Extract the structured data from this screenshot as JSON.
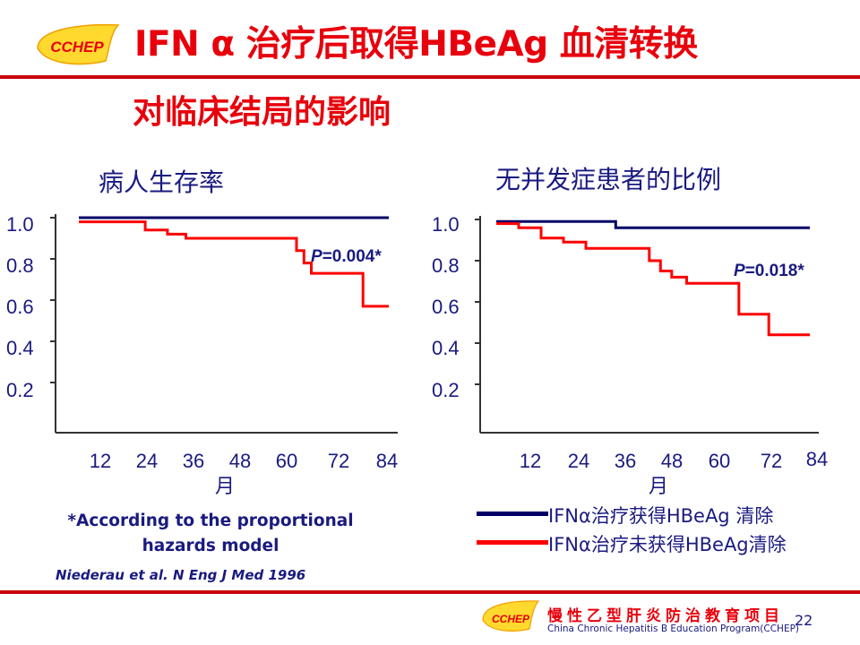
{
  "header": {
    "logo_text": "CCHEP",
    "title_line1": "IFN α 治疗后取得HBeAg 血清转换",
    "title_line2": "对临床结局的影响"
  },
  "chart_data": [
    {
      "type": "line",
      "title": "病人生存率",
      "xlabel": "月",
      "x_ticks": [
        "12",
        "24",
        "36",
        "48",
        "60",
        "72",
        "84"
      ],
      "y_ticks": [
        "1.0",
        "0.8",
        "0.6",
        "0.4",
        "0.2"
      ],
      "xlim": [
        0,
        84
      ],
      "ylim": [
        0,
        1.0
      ],
      "annotation": {
        "p_letter": "P",
        "p_value": "=0.004*"
      },
      "series": [
        {
          "name": "IFNα治疗获得HBeAg 清除",
          "color": "#000066",
          "points": [
            [
              0,
              1.0
            ],
            [
              84,
              1.0
            ]
          ]
        },
        {
          "name": "IFNα治疗未获得HBeAg清除",
          "color": "#ff0000",
          "points": [
            [
              0,
              0.98
            ],
            [
              18,
              0.98
            ],
            [
              18,
              0.94
            ],
            [
              24,
              0.94
            ],
            [
              24,
              0.92
            ],
            [
              29,
              0.92
            ],
            [
              29,
              0.9
            ],
            [
              59,
              0.9
            ],
            [
              59,
              0.84
            ],
            [
              61,
              0.84
            ],
            [
              61,
              0.78
            ],
            [
              63,
              0.78
            ],
            [
              63,
              0.73
            ],
            [
              77,
              0.73
            ],
            [
              77,
              0.57
            ],
            [
              84,
              0.57
            ]
          ]
        }
      ]
    },
    {
      "type": "line",
      "title": "无并发症患者的比例",
      "xlabel": "月",
      "x_ticks": [
        "12",
        "24",
        "36",
        "48",
        "60",
        "72",
        "84"
      ],
      "y_ticks": [
        "1.0",
        "0.8",
        "0.6",
        "0.4",
        "0.2"
      ],
      "xlim": [
        0,
        84
      ],
      "ylim": [
        0,
        1.0
      ],
      "annotation": {
        "p_letter": "P",
        "p_value": "=0.018*"
      },
      "series": [
        {
          "name": "IFNα治疗获得HBeAg 清除",
          "color": "#000066",
          "points": [
            [
              0,
              0.99
            ],
            [
              32,
              0.99
            ],
            [
              32,
              0.96
            ],
            [
              84,
              0.96
            ]
          ]
        },
        {
          "name": "IFNα治疗未获得HBeAg清除",
          "color": "#ff0000",
          "points": [
            [
              0,
              0.98
            ],
            [
              6,
              0.98
            ],
            [
              6,
              0.96
            ],
            [
              12,
              0.96
            ],
            [
              12,
              0.91
            ],
            [
              18,
              0.91
            ],
            [
              18,
              0.89
            ],
            [
              24,
              0.89
            ],
            [
              24,
              0.86
            ],
            [
              41,
              0.86
            ],
            [
              41,
              0.8
            ],
            [
              44,
              0.8
            ],
            [
              44,
              0.75
            ],
            [
              47,
              0.75
            ],
            [
              47,
              0.72
            ],
            [
              51,
              0.72
            ],
            [
              51,
              0.69
            ],
            [
              65,
              0.69
            ],
            [
              65,
              0.54
            ],
            [
              73,
              0.54
            ],
            [
              73,
              0.44
            ],
            [
              84,
              0.44
            ]
          ]
        }
      ]
    }
  ],
  "footnote": {
    "line1": "*According to the proportional",
    "line2": "hazards model"
  },
  "citation": "Niederau et al. N Eng J Med 1996",
  "legend": [
    {
      "label": "IFNα治疗获得HBeAg 清除",
      "color": "#000066"
    },
    {
      "label": "IFNα治疗未获得HBeAg清除",
      "color": "#ff0000"
    }
  ],
  "footer": {
    "logo_text": "CCHEP",
    "org_cn": "慢性乙型肝炎防治教育项目",
    "org_en": "China Chronic Hepatitis B Education Program(CCHEP)",
    "page_number": "22"
  }
}
